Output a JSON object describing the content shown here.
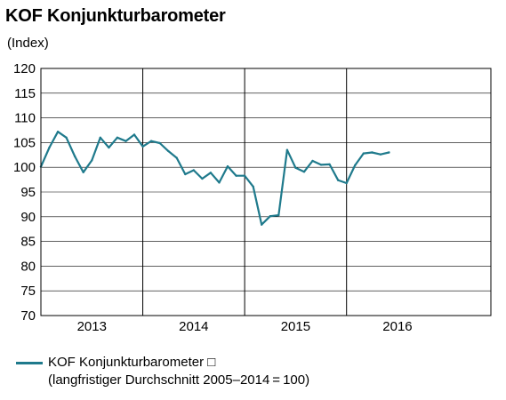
{
  "chart_data": {
    "type": "line",
    "title": "KOF Konjunkturbarometer",
    "ylabel": "(Index)",
    "xlabel": "",
    "ylim": [
      70,
      120
    ],
    "yticks": [
      70,
      75,
      80,
      85,
      90,
      95,
      100,
      105,
      110,
      115,
      120
    ],
    "grid": true,
    "legend_position": "bottom",
    "colors": {
      "line": "#1f7a8c",
      "grid": "#000000"
    },
    "x_range": [
      2012.5,
      2016.9167
    ],
    "year_labels": [
      {
        "label": "2013",
        "x": 2013.0
      },
      {
        "label": "2014",
        "x": 2014.0
      },
      {
        "label": "2015",
        "x": 2015.0
      },
      {
        "label": "2016",
        "x": 2016.0
      }
    ],
    "year_dividers": [
      2013.5,
      2014.5,
      2015.5
    ],
    "series": [
      {
        "name": "KOF Konjunkturbarometer",
        "legend_lines": [
          "KOF Konjunkturbarometer □",
          "(langfristiger Durchschnitt 2005–2014 = 100)"
        ],
        "x": [
          2012.5,
          2012.5833,
          2012.6667,
          2012.75,
          2012.8333,
          2012.9167,
          2013.0,
          2013.0833,
          2013.1667,
          2013.25,
          2013.3333,
          2013.4167,
          2013.5,
          2013.5833,
          2013.6667,
          2013.75,
          2013.8333,
          2013.9167,
          2014.0,
          2014.0833,
          2014.1667,
          2014.25,
          2014.3333,
          2014.4167,
          2014.5,
          2014.5833,
          2014.6667,
          2014.75,
          2014.8333,
          2014.9167,
          2015.0,
          2015.0833,
          2015.1667,
          2015.25,
          2015.3333,
          2015.4167,
          2015.5,
          2015.5833,
          2015.6667,
          2015.75,
          2015.8333,
          2015.9167
        ],
        "values": [
          100.1,
          104.0,
          107.2,
          106.0,
          102.2,
          99.0,
          101.4,
          106.0,
          104.0,
          106.0,
          105.3,
          106.6,
          104.2,
          105.3,
          104.9,
          103.3,
          101.9,
          98.6,
          99.4,
          97.7,
          98.9,
          96.9,
          100.2,
          98.3,
          98.3,
          96.1,
          88.4,
          90.1,
          90.3,
          103.5,
          99.9,
          99.1,
          101.3,
          100.5,
          100.6,
          97.4,
          96.8,
          100.4,
          102.8,
          103.0,
          102.6,
          103.0
        ]
      }
    ]
  }
}
